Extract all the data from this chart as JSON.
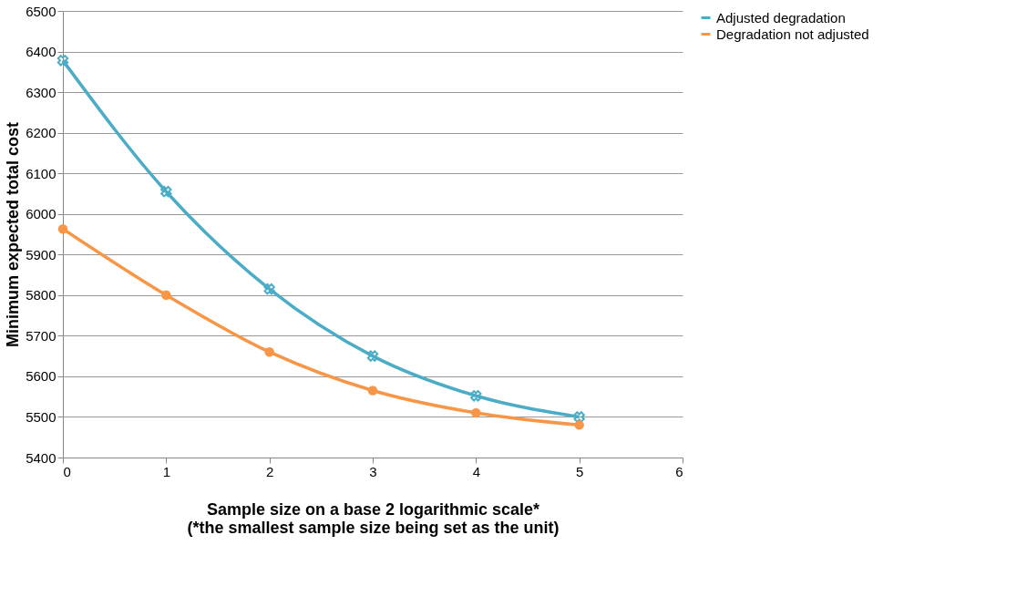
{
  "chart_data": {
    "type": "line",
    "xlabel": "Sample size on a base 2 logarithmic scale*\n(*the smallest sample size being set as the unit)",
    "ylabel": "Minimum expected total cost",
    "x": [
      0,
      1,
      2,
      3,
      4,
      5
    ],
    "series": [
      {
        "name": "Adjusted degradation",
        "color": "#4bacc6",
        "marker": "cross",
        "values": [
          6378,
          6055,
          5815,
          5650,
          5552,
          5500
        ]
      },
      {
        "name": "Degradation not adjusted",
        "color": "#f79646",
        "marker": "circle",
        "values": [
          5963,
          5800,
          5660,
          5565,
          5510,
          5480
        ]
      }
    ],
    "xlim": [
      0,
      6
    ],
    "xticks": [
      0,
      1,
      2,
      3,
      4,
      5,
      6
    ],
    "ylim": [
      5400,
      6500
    ],
    "yticks": [
      5400,
      5500,
      5600,
      5700,
      5800,
      5900,
      6000,
      6100,
      6200,
      6300,
      6400,
      6500
    ],
    "grid": "y",
    "legend": "right",
    "line_style": "solid"
  }
}
